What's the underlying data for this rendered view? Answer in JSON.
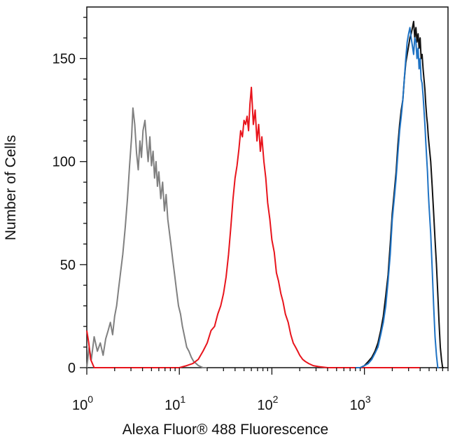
{
  "chart_data": {
    "type": "line",
    "title": "",
    "xlabel": "Alexa Fluor® 488 Fluorescence",
    "ylabel": "Number of Cells",
    "x_scale": "log",
    "xlim": [
      1,
      8000
    ],
    "ylim": [
      0,
      175
    ],
    "x_ticks": [
      {
        "value": 1,
        "base": "10",
        "exp": "0"
      },
      {
        "value": 10,
        "base": "10",
        "exp": "1"
      },
      {
        "value": 100,
        "base": "10",
        "exp": "2"
      },
      {
        "value": 1000,
        "base": "10",
        "exp": "3"
      }
    ],
    "y_ticks": [
      {
        "value": 0,
        "label": "0"
      },
      {
        "value": 50,
        "label": "50"
      },
      {
        "value": 100,
        "label": "100"
      },
      {
        "value": 150,
        "label": "150"
      }
    ],
    "grid": false,
    "legend": "none",
    "series": [
      {
        "color": "#808080",
        "x": [
          1.0,
          1.06,
          1.12,
          1.2,
          1.3,
          1.4,
          1.5,
          1.6,
          1.7,
          1.8,
          1.9,
          2.0,
          2.1,
          2.2,
          2.3,
          2.45,
          2.6,
          2.75,
          2.9,
          3.05,
          3.15,
          3.3,
          3.45,
          3.6,
          3.75,
          3.9,
          4.05,
          4.25,
          4.45,
          4.6,
          4.8,
          5.0,
          5.2,
          5.4,
          5.6,
          5.8,
          6.0,
          6.3,
          6.6,
          6.9,
          7.2,
          7.5,
          7.8,
          8.1,
          8.5,
          8.9,
          9.3,
          9.8,
          10.3,
          10.8,
          11.4,
          12.0,
          12.7,
          13.5,
          14.3,
          15.2,
          16.1,
          17.0,
          18.0,
          19.0,
          20.0
        ],
        "y": [
          0,
          10,
          4,
          15,
          8,
          12,
          6,
          14,
          18,
          22,
          16,
          25,
          30,
          38,
          45,
          55,
          68,
          82,
          98,
          112,
          126,
          118,
          104,
          96,
          110,
          102,
          115,
          120,
          108,
          100,
          112,
          98,
          105,
          92,
          100,
          88,
          95,
          82,
          90,
          76,
          84,
          72,
          66,
          60,
          52,
          45,
          38,
          30,
          26,
          20,
          15,
          10,
          8,
          5,
          3,
          2,
          1,
          0.5,
          0,
          0,
          0
        ]
      },
      {
        "color": "#e8141c",
        "x": [
          1.0,
          1.05,
          1.1,
          1.2,
          8.0,
          10.0,
          12.0,
          14.0,
          16.0,
          18.0,
          20.0,
          22.0,
          24.0,
          26.0,
          28.0,
          30.0,
          32.0,
          34.0,
          36.0,
          38.0,
          40.0,
          42.0,
          44.0,
          46.0,
          48.0,
          50.0,
          52.0,
          54.0,
          56.0,
          58.0,
          60.0,
          63.0,
          66.0,
          69.0,
          72.0,
          75.0,
          78.0,
          82.0,
          86.0,
          90.0,
          95.0,
          100.0,
          106.0,
          112.0,
          118.0,
          125.0,
          132.0,
          140.0,
          150.0,
          160.0,
          170.0,
          180.0,
          190.0,
          200.0,
          215.0,
          230.0,
          250.0,
          280.0,
          320.0,
          400.0,
          500.0,
          800.0,
          1500.0,
          3000.0,
          4000.0
        ],
        "y": [
          18,
          12,
          4,
          0,
          0,
          0,
          1,
          2,
          4,
          8,
          12,
          18,
          20,
          26,
          30,
          36,
          44,
          55,
          68,
          82,
          92,
          98,
          106,
          115,
          112,
          120,
          118,
          122,
          115,
          128,
          136,
          118,
          125,
          110,
          118,
          105,
          112,
          100,
          92,
          80,
          72,
          62,
          56,
          46,
          42,
          36,
          32,
          26,
          22,
          16,
          12,
          10,
          8,
          6,
          4,
          3,
          2,
          1,
          0.5,
          0,
          0,
          0,
          0,
          0,
          0
        ]
      },
      {
        "color": "#111111",
        "x": [
          800,
          900,
          1000,
          1100,
          1200,
          1300,
          1400,
          1500,
          1600,
          1700,
          1800,
          1900,
          2000,
          2100,
          2200,
          2300,
          2400,
          2500,
          2600,
          2700,
          2800,
          2900,
          3000,
          3100,
          3200,
          3300,
          3400,
          3500,
          3600,
          3700,
          3800,
          3900,
          4000,
          4100,
          4200,
          4300,
          4400,
          4500,
          4600,
          4700,
          4800,
          4900,
          5000,
          5200,
          5400,
          5600,
          5800,
          6000,
          6200,
          6400,
          6600,
          6800,
          7000,
          7200
        ],
        "y": [
          0,
          0,
          1,
          3,
          5,
          8,
          12,
          18,
          25,
          35,
          45,
          60,
          75,
          85,
          95,
          108,
          118,
          125,
          130,
          140,
          148,
          152,
          156,
          160,
          162,
          165,
          168,
          160,
          165,
          158,
          162,
          155,
          160,
          150,
          152,
          145,
          140,
          135,
          128,
          122,
          118,
          112,
          108,
          100,
          88,
          75,
          62,
          50,
          36,
          22,
          10,
          4,
          0,
          0
        ]
      },
      {
        "color": "#1f73c4",
        "x": [
          800,
          900,
          1000,
          1100,
          1200,
          1300,
          1400,
          1500,
          1600,
          1700,
          1800,
          1900,
          2000,
          2100,
          2200,
          2300,
          2400,
          2500,
          2600,
          2700,
          2800,
          2900,
          3000,
          3100,
          3200,
          3300,
          3400,
          3500,
          3600,
          3700,
          3800,
          3900,
          4000,
          4100,
          4200,
          4300,
          4400,
          4500,
          4600,
          4700,
          4800,
          4900,
          5000,
          5200,
          5400,
          5600,
          5800,
          6000,
          6200,
          6400
        ],
        "y": [
          0,
          0,
          1,
          2,
          4,
          7,
          10,
          16,
          22,
          30,
          42,
          55,
          72,
          82,
          92,
          104,
          115,
          122,
          130,
          140,
          150,
          158,
          162,
          165,
          160,
          156,
          152,
          160,
          158,
          150,
          155,
          145,
          150,
          140,
          138,
          132,
          125,
          118,
          110,
          102,
          95,
          85,
          78,
          65,
          48,
          30,
          15,
          6,
          0,
          0
        ]
      }
    ]
  }
}
